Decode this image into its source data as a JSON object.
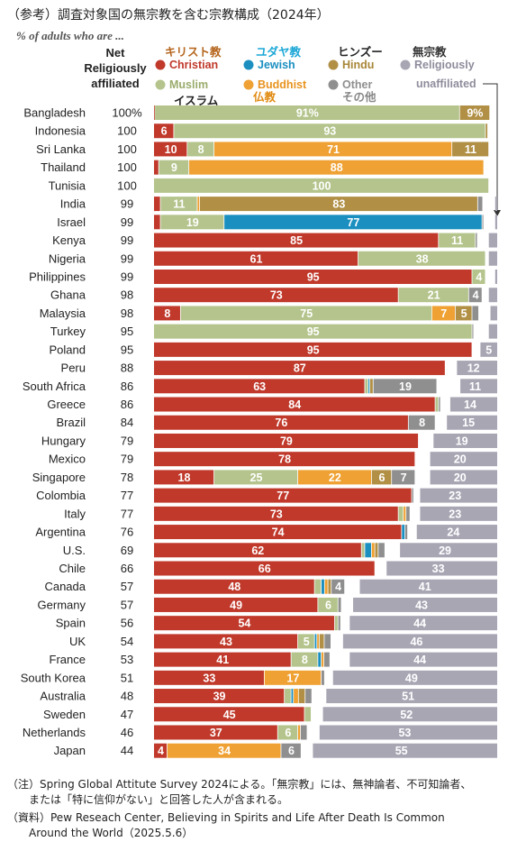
{
  "title": "（参考）調査対象国の無宗教を含む宗教構成（2024年）",
  "subtitle": "% of adults who are ...",
  "notes": [
    "（注）Spring Global Attitute Survey 2024による。「無宗教」には、無神論者、不可知論者、\n　　または「特に信仰がない」と回答した人が含まれる。",
    "（資料）Pew Reseach Center, Believing in Spirits and Life After Death Is Common\n　　Around the World（2025.5.6）"
  ],
  "chart_data": {
    "type": "bar",
    "orientation": "horizontal",
    "stacked": true,
    "net_column_header": [
      "Net",
      "Religiously",
      "affiliated"
    ],
    "legend": [
      {
        "key": "christian",
        "label": "Christian",
        "label_ja": "キリスト教",
        "color": "#c0392b"
      },
      {
        "key": "muslim",
        "label": "Muslim",
        "label_ja": "イスラム",
        "color": "#b4c48c"
      },
      {
        "key": "jewish",
        "label": "Jewish",
        "label_ja": "ユダヤ教",
        "color": "#1b8fc0"
      },
      {
        "key": "buddhist",
        "label": "Buddhist",
        "label_ja": "仏教",
        "color": "#efa133"
      },
      {
        "key": "hindu",
        "label": "Hindu",
        "label_ja": "ヒンズー",
        "color": "#b19046"
      },
      {
        "key": "other",
        "label": "Other",
        "label_ja": "その他",
        "color": "#8f8f8f"
      },
      {
        "key": "unaffiliated",
        "label": "Religiously unaffiliated",
        "label_ja": "無宗教",
        "color": "#a9a6b4"
      }
    ],
    "segment_order": [
      "christian",
      "muslim",
      "jewish",
      "buddhist",
      "hindu",
      "other"
    ],
    "countries": [
      {
        "name": "Bangladesh",
        "net": "100%",
        "values": {
          "christian": 0.3,
          "muslim": 91,
          "jewish": 0,
          "buddhist": 0,
          "hindu": 9,
          "other": 0
        },
        "unaffiliated": 0,
        "labels": {
          "muslim": "91%",
          "hindu": "9%"
        }
      },
      {
        "name": "Indonesia",
        "net": "100",
        "values": {
          "christian": 6,
          "muslim": 93,
          "jewish": 0,
          "buddhist": 0,
          "hindu": 0.7,
          "other": 0
        },
        "unaffiliated": 0,
        "labels": {
          "christian": "6",
          "muslim": "93"
        }
      },
      {
        "name": "Sri Lanka",
        "net": "100",
        "values": {
          "christian": 10,
          "muslim": 8,
          "jewish": 0,
          "buddhist": 71,
          "hindu": 11,
          "other": 0
        },
        "unaffiliated": 0,
        "labels": {
          "christian": "10",
          "muslim": "8",
          "buddhist": "71",
          "hindu": "11"
        }
      },
      {
        "name": "Thailand",
        "net": "100",
        "values": {
          "christian": 1.5,
          "muslim": 9,
          "jewish": 0,
          "buddhist": 88,
          "hindu": 0,
          "other": 0
        },
        "unaffiliated": 0,
        "labels": {
          "muslim": "9",
          "buddhist": "88"
        }
      },
      {
        "name": "Tunisia",
        "net": "100",
        "values": {
          "christian": 0,
          "muslim": 100,
          "jewish": 0,
          "buddhist": 0,
          "hindu": 0,
          "other": 0
        },
        "unaffiliated": 0,
        "labels": {
          "muslim": "100"
        }
      },
      {
        "name": "India",
        "net": "99",
        "values": {
          "christian": 2,
          "muslim": 11,
          "jewish": 0,
          "buddhist": 0.7,
          "hindu": 83,
          "other": 1.5
        },
        "unaffiliated": 0.6,
        "labels": {
          "muslim": "11",
          "hindu": "83"
        }
      },
      {
        "name": "Israel",
        "net": "99",
        "values": {
          "christian": 2,
          "muslim": 19,
          "jewish": 77,
          "buddhist": 0,
          "hindu": 0,
          "other": 0.5
        },
        "unaffiliated": 0.6,
        "labels": {
          "muslim": "19",
          "jewish": "77"
        }
      },
      {
        "name": "Kenya",
        "net": "99",
        "values": {
          "christian": 85,
          "muslim": 11,
          "jewish": 0,
          "buddhist": 0,
          "hindu": 0,
          "other": 0.6
        },
        "unaffiliated": 2.5,
        "labels": {
          "christian": "85",
          "muslim": "11"
        }
      },
      {
        "name": "Nigeria",
        "net": "99",
        "values": {
          "christian": 61,
          "muslim": 38,
          "jewish": 0,
          "buddhist": 0,
          "hindu": 0,
          "other": 0
        },
        "unaffiliated": 2.5,
        "labels": {
          "christian": "61",
          "muslim": "38"
        }
      },
      {
        "name": "Philippines",
        "net": "99",
        "values": {
          "christian": 95,
          "muslim": 4,
          "jewish": 0,
          "buddhist": 0,
          "hindu": 0,
          "other": 0
        },
        "unaffiliated": 0.6,
        "labels": {
          "christian": "95",
          "muslim": "4"
        }
      },
      {
        "name": "Ghana",
        "net": "98",
        "values": {
          "christian": 73,
          "muslim": 21,
          "jewish": 0,
          "buddhist": 0,
          "hindu": 0,
          "other": 4
        },
        "unaffiliated": 2.5,
        "labels": {
          "christian": "73",
          "muslim": "21",
          "other": "4"
        }
      },
      {
        "name": "Malaysia",
        "net": "98",
        "values": {
          "christian": 8,
          "muslim": 75,
          "jewish": 0,
          "buddhist": 7,
          "hindu": 5,
          "other": 2
        },
        "unaffiliated": 2,
        "labels": {
          "christian": "8",
          "muslim": "75",
          "buddhist": "7",
          "hindu": "5"
        }
      },
      {
        "name": "Turkey",
        "net": "95",
        "values": {
          "christian": 0,
          "muslim": 95,
          "jewish": 0,
          "buddhist": 0,
          "hindu": 0,
          "other": 0.5
        },
        "unaffiliated": 2.5,
        "labels": {
          "muslim": "95"
        }
      },
      {
        "name": "Poland",
        "net": "95",
        "values": {
          "christian": 95,
          "muslim": 0,
          "jewish": 0,
          "buddhist": 0,
          "hindu": 0,
          "other": 0
        },
        "unaffiliated": 5,
        "labels": {
          "christian": "95",
          "unaffiliated": "5"
        }
      },
      {
        "name": "Peru",
        "net": "88",
        "values": {
          "christian": 87,
          "muslim": 0,
          "jewish": 0,
          "buddhist": 0,
          "hindu": 0,
          "other": 0
        },
        "unaffiliated": 12,
        "labels": {
          "christian": "87",
          "unaffiliated": "12"
        }
      },
      {
        "name": "South Africa",
        "net": "86",
        "values": {
          "christian": 63,
          "muslim": 1,
          "jewish": 0.5,
          "buddhist": 0,
          "hindu": 1,
          "other": 19
        },
        "unaffiliated": 11,
        "labels": {
          "christian": "63",
          "other": "19",
          "unaffiliated": "11"
        }
      },
      {
        "name": "Greece",
        "net": "86",
        "values": {
          "christian": 84,
          "muslim": 1,
          "jewish": 0,
          "buddhist": 0,
          "hindu": 0,
          "other": 0.6
        },
        "unaffiliated": 14,
        "labels": {
          "christian": "84",
          "unaffiliated": "14"
        }
      },
      {
        "name": "Brazil",
        "net": "84",
        "values": {
          "christian": 76,
          "muslim": 0,
          "jewish": 0,
          "buddhist": 0,
          "hindu": 0,
          "other": 8
        },
        "unaffiliated": 15,
        "labels": {
          "christian": "76",
          "other": "8",
          "unaffiliated": "15"
        }
      },
      {
        "name": "Hungary",
        "net": "79",
        "values": {
          "christian": 79,
          "muslim": 0,
          "jewish": 0,
          "buddhist": 0,
          "hindu": 0,
          "other": 0
        },
        "unaffiliated": 19,
        "labels": {
          "christian": "79",
          "unaffiliated": "19"
        }
      },
      {
        "name": "Mexico",
        "net": "79",
        "values": {
          "christian": 78,
          "muslim": 0,
          "jewish": 0,
          "buddhist": 0,
          "hindu": 0,
          "other": 0
        },
        "unaffiliated": 20,
        "labels": {
          "christian": "78",
          "unaffiliated": "20"
        }
      },
      {
        "name": "Singapore",
        "net": "78",
        "values": {
          "christian": 18,
          "muslim": 25,
          "jewish": 0,
          "buddhist": 22,
          "hindu": 6,
          "other": 7
        },
        "unaffiliated": 20,
        "labels": {
          "christian": "18",
          "muslim": "25",
          "buddhist": "22",
          "hindu": "6",
          "other": "7",
          "unaffiliated": "20"
        }
      },
      {
        "name": "Colombia",
        "net": "77",
        "values": {
          "christian": 77,
          "muslim": 0,
          "jewish": 0,
          "buddhist": 0,
          "hindu": 0,
          "other": 0.6
        },
        "unaffiliated": 23,
        "labels": {
          "christian": "77",
          "unaffiliated": "23"
        }
      },
      {
        "name": "Italy",
        "net": "77",
        "values": {
          "christian": 73,
          "muslim": 1.5,
          "jewish": 0,
          "buddhist": 0.8,
          "hindu": 0,
          "other": 1.2
        },
        "unaffiliated": 23,
        "labels": {
          "christian": "73",
          "unaffiliated": "23"
        }
      },
      {
        "name": "Argentina",
        "net": "76",
        "values": {
          "christian": 74,
          "muslim": 0,
          "jewish": 1,
          "buddhist": 0,
          "hindu": 0,
          "other": 0.8
        },
        "unaffiliated": 24,
        "labels": {
          "christian": "74",
          "unaffiliated": "24"
        }
      },
      {
        "name": "U.S.",
        "net": "69",
        "values": {
          "christian": 62,
          "muslim": 1,
          "jewish": 2,
          "buddhist": 1,
          "hindu": 1,
          "other": 2
        },
        "unaffiliated": 29,
        "labels": {
          "christian": "62",
          "unaffiliated": "29"
        }
      },
      {
        "name": "Chile",
        "net": "66",
        "values": {
          "christian": 66,
          "muslim": 0,
          "jewish": 0,
          "buddhist": 0,
          "hindu": 0,
          "other": 0
        },
        "unaffiliated": 33,
        "labels": {
          "christian": "66",
          "unaffiliated": "33"
        }
      },
      {
        "name": "Canada",
        "net": "57",
        "values": {
          "christian": 48,
          "muslim": 2,
          "jewish": 1,
          "buddhist": 1,
          "hindu": 1,
          "other": 4
        },
        "unaffiliated": 41,
        "labels": {
          "christian": "48",
          "other": "4",
          "unaffiliated": "41"
        }
      },
      {
        "name": "Germany",
        "net": "57",
        "values": {
          "christian": 49,
          "muslim": 6,
          "jewish": 0,
          "buddhist": 0,
          "hindu": 0,
          "other": 1
        },
        "unaffiliated": 43,
        "labels": {
          "christian": "49",
          "muslim": "6",
          "unaffiliated": "43"
        }
      },
      {
        "name": "Spain",
        "net": "56",
        "values": {
          "christian": 54,
          "muslim": 1,
          "jewish": 0,
          "buddhist": 0,
          "hindu": 0,
          "other": 0.8
        },
        "unaffiliated": 44,
        "labels": {
          "christian": "54",
          "unaffiliated": "44"
        }
      },
      {
        "name": "UK",
        "net": "54",
        "values": {
          "christian": 43,
          "muslim": 5,
          "jewish": 0.7,
          "buddhist": 0.7,
          "hindu": 1.5,
          "other": 2
        },
        "unaffiliated": 46,
        "labels": {
          "christian": "43",
          "muslim": "5",
          "unaffiliated": "46"
        }
      },
      {
        "name": "France",
        "net": "53",
        "values": {
          "christian": 41,
          "muslim": 8,
          "jewish": 1,
          "buddhist": 0.8,
          "hindu": 0,
          "other": 1.8
        },
        "unaffiliated": 44,
        "labels": {
          "christian": "41",
          "muslim": "8",
          "unaffiliated": "44"
        }
      },
      {
        "name": "South Korea",
        "net": "51",
        "values": {
          "christian": 33,
          "muslim": 0,
          "jewish": 0,
          "buddhist": 17,
          "hindu": 0,
          "other": 1
        },
        "unaffiliated": 49,
        "labels": {
          "christian": "33",
          "buddhist": "17",
          "unaffiliated": "49"
        }
      },
      {
        "name": "Australia",
        "net": "48",
        "values": {
          "christian": 39,
          "muslim": 2,
          "jewish": 0.7,
          "buddhist": 1.5,
          "hindu": 2,
          "other": 2
        },
        "unaffiliated": 51,
        "labels": {
          "christian": "39",
          "unaffiliated": "51"
        }
      },
      {
        "name": "Sweden",
        "net": "47",
        "values": {
          "christian": 45,
          "muslim": 2,
          "jewish": 0,
          "buddhist": 0,
          "hindu": 0,
          "other": 0
        },
        "unaffiliated": 52,
        "labels": {
          "christian": "45",
          "unaffiliated": "52"
        }
      },
      {
        "name": "Netherlands",
        "net": "46",
        "values": {
          "christian": 37,
          "muslim": 6,
          "jewish": 0,
          "buddhist": 0.8,
          "hindu": 0,
          "other": 2
        },
        "unaffiliated": 53,
        "labels": {
          "christian": "37",
          "muslim": "6",
          "unaffiliated": "53"
        }
      },
      {
        "name": "Japan",
        "net": "44",
        "values": {
          "christian": 4,
          "muslim": 0,
          "jewish": 0,
          "buddhist": 34,
          "hindu": 0,
          "other": 6
        },
        "unaffiliated": 55,
        "labels": {
          "christian": "4",
          "buddhist": "34",
          "other": "6",
          "unaffiliated": "55"
        }
      }
    ]
  }
}
